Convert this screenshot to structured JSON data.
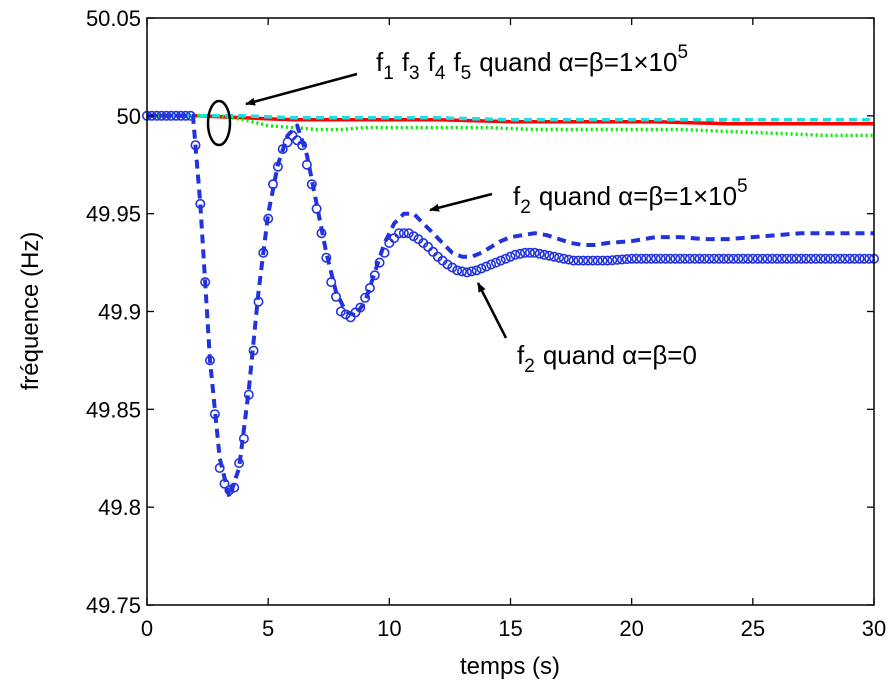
{
  "chart_data": {
    "type": "line",
    "xlabel": "temps (s)",
    "ylabel": "fréquence (Hz)",
    "xlim": [
      0,
      30
    ],
    "ylim": [
      49.75,
      50.05
    ],
    "xticks": [
      "0",
      "5",
      "10",
      "15",
      "20",
      "25",
      "30"
    ],
    "yticks": [
      "49.75",
      "49.8",
      "49.85",
      "49.9",
      "49.95",
      "50",
      "50.05"
    ],
    "grid": false,
    "series": [
      {
        "color": "#2233dd",
        "style": "dashed",
        "x": [
          0,
          1.9,
          2.2,
          2.6,
          3.0,
          3.4,
          3.8,
          4.2,
          4.6,
          5.0,
          5.4,
          5.8,
          6.2,
          6.6,
          7.0,
          7.4,
          7.8,
          8.2,
          8.6,
          9.0,
          9.4,
          9.8,
          10.2,
          10.6,
          11.0,
          11.4,
          11.8,
          12.2,
          12.6,
          13.0,
          13.4,
          13.8,
          14.2,
          14.6,
          15.0,
          15.5,
          16.0,
          16.5,
          17.0,
          17.5,
          18.0,
          18.5,
          19.0,
          20.0,
          21.0,
          22.0,
          23.0,
          24.0,
          25.0,
          26.0,
          27.0,
          28.0,
          29.0,
          30.0
        ],
        "y": [
          50.0,
          50.0,
          49.955,
          49.875,
          49.825,
          49.805,
          49.82,
          49.86,
          49.91,
          49.95,
          49.975,
          49.99,
          49.995,
          49.98,
          49.955,
          49.93,
          49.91,
          49.9,
          49.898,
          49.905,
          49.92,
          49.935,
          49.945,
          49.95,
          49.95,
          49.945,
          49.94,
          49.935,
          49.93,
          49.928,
          49.928,
          49.93,
          49.933,
          49.936,
          49.938,
          49.939,
          49.94,
          49.939,
          49.937,
          49.935,
          49.934,
          49.934,
          49.935,
          49.936,
          49.938,
          49.938,
          49.937,
          49.937,
          49.938,
          49.939,
          49.94,
          49.94,
          49.94,
          49.94
        ]
      },
      {
        "color": "#2233dd",
        "style": "circles",
        "x": [
          0,
          1.9,
          2.2,
          2.6,
          3.0,
          3.3,
          3.6,
          4.0,
          4.4,
          4.8,
          5.2,
          5.6,
          6.0,
          6.4,
          6.8,
          7.2,
          7.6,
          8.0,
          8.4,
          8.8,
          9.2,
          9.6,
          10.0,
          10.4,
          10.8,
          11.2,
          11.6,
          12.0,
          12.4,
          12.8,
          13.2,
          13.6,
          14.0,
          14.4,
          14.8,
          15.2,
          15.6,
          16.0,
          16.4,
          16.8,
          17.2,
          17.6,
          18.0,
          18.5,
          19.0,
          20.0,
          21.0,
          22.0,
          23.0,
          24.0,
          25.0,
          26.0,
          27.0,
          28.0,
          29.0,
          30.0
        ],
        "y": [
          50.0,
          50.0,
          49.955,
          49.875,
          49.82,
          49.808,
          49.81,
          49.835,
          49.88,
          49.93,
          49.965,
          49.983,
          49.99,
          49.985,
          49.965,
          49.94,
          49.915,
          49.9,
          49.897,
          49.902,
          49.912,
          49.925,
          49.935,
          49.94,
          49.94,
          49.937,
          49.933,
          49.928,
          49.924,
          49.921,
          49.92,
          49.921,
          49.923,
          49.925,
          49.927,
          49.929,
          49.93,
          49.93,
          49.929,
          49.928,
          49.927,
          49.926,
          49.926,
          49.926,
          49.926,
          49.927,
          49.927,
          49.927,
          49.927,
          49.927,
          49.927,
          49.927,
          49.927,
          49.927,
          49.927,
          49.927
        ]
      },
      {
        "color": "#ff0000",
        "style": "solid",
        "x": [
          0,
          2,
          4,
          6,
          8,
          10,
          12,
          15,
          18,
          21,
          24,
          27,
          30
        ],
        "y": [
          50.0,
          50.0,
          49.999,
          49.998,
          49.998,
          49.998,
          49.998,
          49.997,
          49.997,
          49.997,
          49.996,
          49.996,
          49.996
        ]
      },
      {
        "color": "#00ee00",
        "style": "dotted",
        "x": [
          0,
          2,
          3,
          4,
          5,
          6,
          7,
          8,
          9,
          10,
          11,
          12,
          14,
          16,
          18,
          20,
          22,
          24,
          26,
          28,
          30
        ],
        "y": [
          50.0,
          50.0,
          50.0,
          49.998,
          49.995,
          49.994,
          49.993,
          49.993,
          49.994,
          49.994,
          49.994,
          49.994,
          49.994,
          49.993,
          49.993,
          49.993,
          49.993,
          49.992,
          49.991,
          49.99,
          49.99
        ]
      },
      {
        "color": "#22dddd",
        "style": "dashed",
        "x": [
          0,
          2,
          4,
          6,
          8,
          10,
          12,
          15,
          18,
          21,
          24,
          27,
          30
        ],
        "y": [
          50.0,
          50.0,
          50.0,
          49.999,
          49.999,
          49.999,
          49.999,
          49.998,
          49.998,
          49.998,
          49.998,
          49.998,
          49.998
        ]
      }
    ],
    "annotations": [
      {
        "text": "f1 f3 f4 f5 quand α=β=1×10^5"
      },
      {
        "text": "f2 quand α=β=1×10^5"
      },
      {
        "text": "f2 quand α=β=0"
      }
    ]
  },
  "labels": {
    "ann1": {
      "f": "f",
      "s1": "1",
      "s3": "3",
      "s4": "4",
      "s5": "5",
      "quand": "quand",
      "eq": "α=β=1×10",
      "exp": "5"
    },
    "ann2": {
      "f": "f",
      "s2": "2",
      "quand": "quand",
      "eq": "α=β=1×10",
      "exp": "5"
    },
    "ann3": {
      "f": "f",
      "s2": "2",
      "quand": "quand",
      "eq": "α=β=0"
    }
  }
}
